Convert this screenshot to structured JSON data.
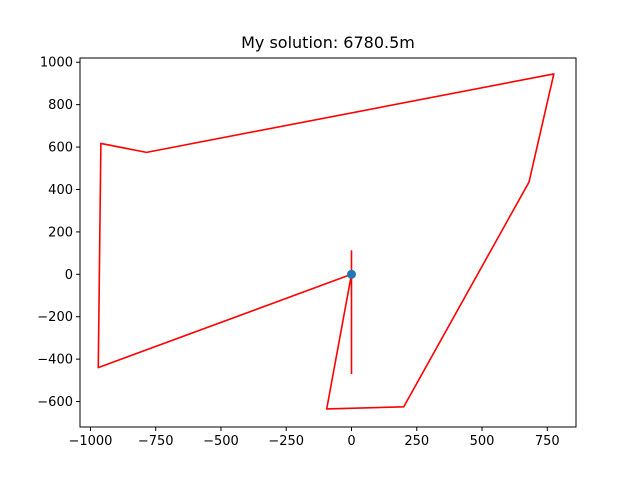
{
  "chart_data": {
    "type": "line",
    "title": "My solution: 6780.5m",
    "xlabel": "",
    "ylabel": "",
    "xlim": [
      -1040,
      860
    ],
    "ylim": [
      -720,
      1020
    ],
    "xticks": [
      -1000,
      -750,
      -500,
      -250,
      0,
      250,
      500,
      750
    ],
    "xtick_labels": [
      "−1000",
      "−750",
      "−500",
      "−250",
      "0",
      "250",
      "500",
      "750"
    ],
    "yticks": [
      -600,
      -400,
      -200,
      0,
      200,
      400,
      600,
      800,
      1000
    ],
    "ytick_labels": [
      "−600",
      "−400",
      "−200",
      "0",
      "200",
      "400",
      "600",
      "800",
      "1000"
    ],
    "grid": false,
    "series": [
      {
        "color": "#ff0000",
        "x": [
          0,
          0,
          0,
          -95,
          200,
          680,
          775,
          -785,
          -960,
          -970,
          0,
          0
        ],
        "y": [
          0,
          110,
          0,
          -635,
          -625,
          435,
          945,
          575,
          617,
          -440,
          0,
          -470
        ]
      }
    ],
    "points": [
      {
        "x": 0,
        "y": 0,
        "color": "#1f77b4"
      }
    ]
  }
}
